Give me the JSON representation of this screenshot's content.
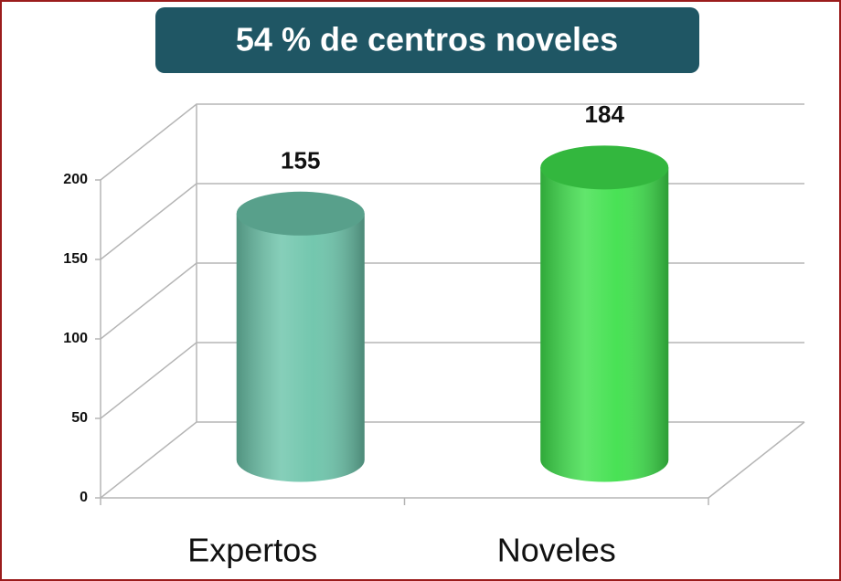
{
  "chart_data": {
    "type": "bar3d",
    "title": "54 % de centros noveles",
    "categories": [
      "Expertos",
      "Noveles"
    ],
    "values": [
      155,
      184
    ],
    "colors": [
      "#6cc4aa",
      "#3fe04c"
    ],
    "ylim": [
      0,
      200
    ],
    "yticks": [
      0,
      50,
      100,
      150,
      200
    ],
    "grid": true
  }
}
